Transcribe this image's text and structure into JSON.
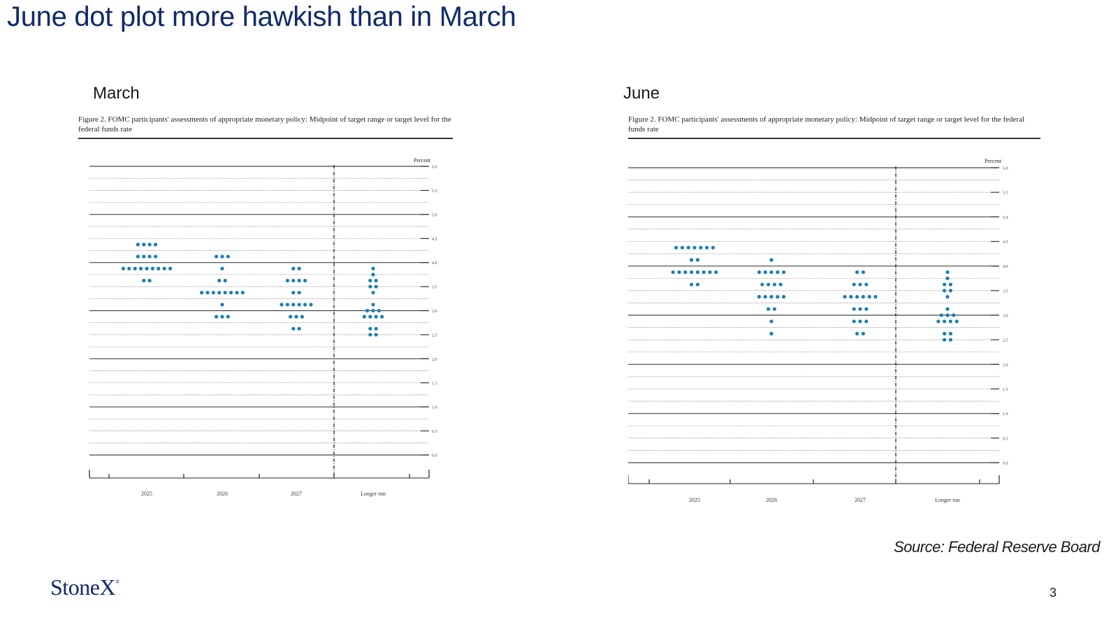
{
  "title": "June dot plot more hawkish than in March",
  "source": "Source: Federal Reserve Board",
  "brand": "StoneX",
  "page_number": "3",
  "colors": {
    "title": "#0f2a6b",
    "dot": "#1a7fb0",
    "brand": "#0f2a6b"
  },
  "chart_data": [
    {
      "type": "scatter",
      "panel_label": "March",
      "title": "Figure 2.  FOMC participants' assessments of appropriate monetary policy:  Midpoint of target range or target level for the federal funds rate",
      "ylabel": "Percent",
      "ylim": [
        0.0,
        6.0
      ],
      "y_ticks": [
        "0.0",
        "0.5",
        "1.0",
        "1.5",
        "2.0",
        "2.5",
        "3.0",
        "3.5",
        "4.0",
        "4.5",
        "5.0",
        "5.5",
        "6.0"
      ],
      "categories": [
        "2025",
        "2026",
        "2027",
        "Longer run"
      ],
      "series": [
        {
          "category": "2025",
          "dots": [
            {
              "y": 4.375,
              "count": 4
            },
            {
              "y": 4.125,
              "count": 4
            },
            {
              "y": 3.875,
              "count": 9
            },
            {
              "y": 3.625,
              "count": 2
            }
          ]
        },
        {
          "category": "2026",
          "dots": [
            {
              "y": 4.125,
              "count": 3
            },
            {
              "y": 3.875,
              "count": 1
            },
            {
              "y": 3.625,
              "count": 2
            },
            {
              "y": 3.375,
              "count": 8
            },
            {
              "y": 3.125,
              "count": 1
            },
            {
              "y": 2.875,
              "count": 3
            }
          ]
        },
        {
          "category": "2027",
          "dots": [
            {
              "y": 3.875,
              "count": 2
            },
            {
              "y": 3.625,
              "count": 4
            },
            {
              "y": 3.375,
              "count": 2
            },
            {
              "y": 3.125,
              "count": 6
            },
            {
              "y": 2.875,
              "count": 3
            },
            {
              "y": 2.625,
              "count": 2
            }
          ]
        },
        {
          "category": "Longer run",
          "dots": [
            {
              "y": 3.875,
              "count": 1
            },
            {
              "y": 3.75,
              "count": 1
            },
            {
              "y": 3.625,
              "count": 2
            },
            {
              "y": 3.5,
              "count": 2
            },
            {
              "y": 3.375,
              "count": 1
            },
            {
              "y": 3.125,
              "count": 1
            },
            {
              "y": 3.0,
              "count": 3
            },
            {
              "y": 2.875,
              "count": 4
            },
            {
              "y": 2.625,
              "count": 2
            },
            {
              "y": 2.5,
              "count": 2
            }
          ]
        }
      ]
    },
    {
      "type": "scatter",
      "panel_label": "June",
      "title": "Figure 2.  FOMC participants' assessments of appropriate monetary policy:  Midpoint of target range or target level for the federal funds rate",
      "ylabel": "Percent",
      "ylim": [
        0.0,
        6.0
      ],
      "y_ticks": [
        "0.0",
        "0.5",
        "1.0",
        "1.5",
        "2.0",
        "2.5",
        "3.0",
        "3.5",
        "4.0",
        "4.5",
        "5.0",
        "5.5",
        "6.0"
      ],
      "categories": [
        "2025",
        "2026",
        "2027",
        "Longer run"
      ],
      "series": [
        {
          "category": "2025",
          "dots": [
            {
              "y": 4.375,
              "count": 7
            },
            {
              "y": 4.125,
              "count": 2
            },
            {
              "y": 3.875,
              "count": 8
            },
            {
              "y": 3.625,
              "count": 2
            }
          ]
        },
        {
          "category": "2026",
          "dots": [
            {
              "y": 4.125,
              "count": 1
            },
            {
              "y": 3.875,
              "count": 5
            },
            {
              "y": 3.625,
              "count": 4
            },
            {
              "y": 3.375,
              "count": 5
            },
            {
              "y": 3.125,
              "count": 2
            },
            {
              "y": 2.875,
              "count": 1
            },
            {
              "y": 2.625,
              "count": 1
            }
          ]
        },
        {
          "category": "2027",
          "dots": [
            {
              "y": 3.875,
              "count": 2
            },
            {
              "y": 3.625,
              "count": 3
            },
            {
              "y": 3.375,
              "count": 6
            },
            {
              "y": 3.125,
              "count": 3
            },
            {
              "y": 2.875,
              "count": 3
            },
            {
              "y": 2.625,
              "count": 2
            }
          ]
        },
        {
          "category": "Longer run",
          "dots": [
            {
              "y": 3.875,
              "count": 1
            },
            {
              "y": 3.75,
              "count": 1
            },
            {
              "y": 3.625,
              "count": 2
            },
            {
              "y": 3.5,
              "count": 2
            },
            {
              "y": 3.375,
              "count": 1
            },
            {
              "y": 3.125,
              "count": 1
            },
            {
              "y": 3.0,
              "count": 3
            },
            {
              "y": 2.875,
              "count": 4
            },
            {
              "y": 2.625,
              "count": 2
            },
            {
              "y": 2.5,
              "count": 2
            }
          ]
        }
      ]
    }
  ]
}
